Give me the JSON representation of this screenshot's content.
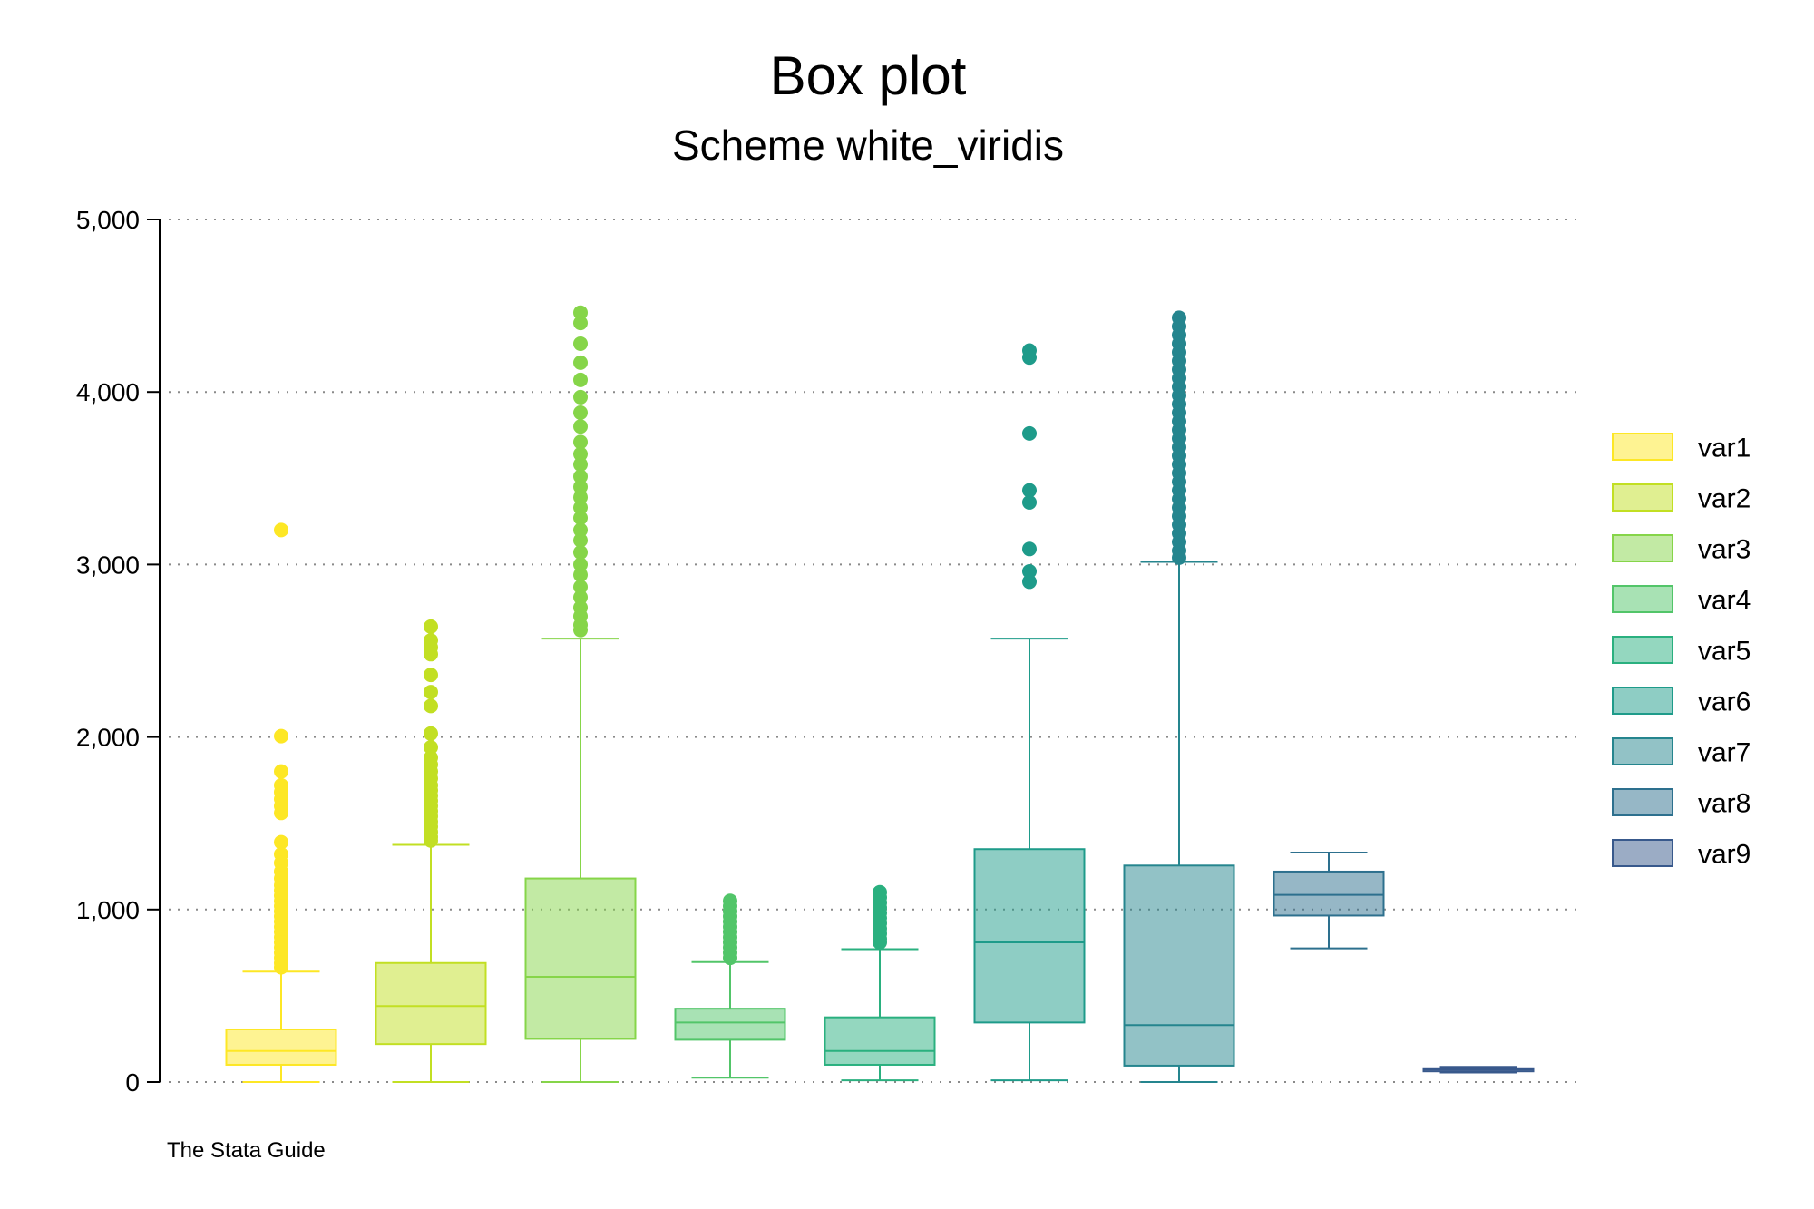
{
  "chart_data": {
    "type": "box",
    "title": "Box plot",
    "subtitle": "Scheme white_viridis",
    "note": "The Stata Guide",
    "xlabel": "",
    "ylabel": "",
    "ylim": [
      0,
      5000
    ],
    "yticks": [
      0,
      1000,
      2000,
      3000,
      4000,
      5000
    ],
    "ytick_labels": [
      "0",
      "1,000",
      "2,000",
      "3,000",
      "4,000",
      "5,000"
    ],
    "grid": true,
    "legend_position": "right",
    "series": [
      {
        "name": "var1",
        "color": "#fde725",
        "q1": 100,
        "median": 180,
        "q3": 305,
        "whisker_low": 0,
        "whisker_high": 640,
        "outliers": [
          3200,
          2005,
          1800,
          1720,
          1680,
          1640,
          1600,
          1560,
          1390,
          1320,
          1270,
          1220,
          1180,
          1140,
          1110,
          1080,
          1050,
          1020,
          990,
          960,
          930,
          900,
          870,
          840,
          810,
          780,
          750,
          720,
          690,
          665
        ]
      },
      {
        "name": "var2",
        "color": "#c2df23",
        "q1": 220,
        "median": 440,
        "q3": 690,
        "whisker_low": 0,
        "whisker_high": 1375,
        "outliers": [
          2640,
          2560,
          2520,
          2480,
          2360,
          2260,
          2180,
          2020,
          1940,
          1880,
          1840,
          1800,
          1760,
          1720,
          1690,
          1660,
          1630,
          1600,
          1570,
          1540,
          1510,
          1480,
          1450,
          1420,
          1400
        ]
      },
      {
        "name": "var3",
        "color": "#86d549",
        "q1": 250,
        "median": 610,
        "q3": 1180,
        "whisker_low": 0,
        "whisker_high": 2570,
        "outliers": [
          4460,
          4400,
          4280,
          4170,
          4070,
          3970,
          3880,
          3800,
          3710,
          3640,
          3580,
          3510,
          3450,
          3390,
          3330,
          3270,
          3200,
          3140,
          3070,
          3000,
          2940,
          2870,
          2810,
          2750,
          2700,
          2650,
          2620
        ]
      },
      {
        "name": "var4",
        "color": "#52c569",
        "q1": 245,
        "median": 345,
        "q3": 425,
        "whisker_low": 25,
        "whisker_high": 695,
        "outliers": [
          1050,
          1020,
          990,
          960,
          930,
          900,
          870,
          840,
          810,
          780,
          750,
          720
        ]
      },
      {
        "name": "var5",
        "color": "#2ab07f",
        "q1": 100,
        "median": 180,
        "q3": 375,
        "whisker_low": 10,
        "whisker_high": 770,
        "outliers": [
          1100,
          1070,
          1040,
          1010,
          980,
          950,
          920,
          890,
          860,
          830,
          810
        ]
      },
      {
        "name": "var6",
        "color": "#1e9b8a",
        "q1": 345,
        "median": 810,
        "q3": 1350,
        "whisker_low": 10,
        "whisker_high": 2570,
        "outliers": [
          4240,
          4200,
          3760,
          3430,
          3360,
          3090,
          2960,
          2900
        ]
      },
      {
        "name": "var7",
        "color": "#25858e",
        "q1": 95,
        "median": 330,
        "q3": 1255,
        "whisker_low": 0,
        "whisker_high": 3015,
        "outliers": [
          4430,
          4380,
          4330,
          4280,
          4230,
          4180,
          4130,
          4080,
          4030,
          3980,
          3930,
          3880,
          3830,
          3780,
          3730,
          3680,
          3630,
          3580,
          3530,
          3480,
          3430,
          3380,
          3330,
          3280,
          3230,
          3180,
          3130,
          3080,
          3040
        ]
      },
      {
        "name": "var8",
        "color": "#2d708e",
        "q1": 965,
        "median": 1085,
        "q3": 1220,
        "whisker_low": 775,
        "whisker_high": 1330,
        "outliers": []
      },
      {
        "name": "var9",
        "color": "#38598c",
        "q1": 62,
        "median": 72,
        "q3": 80,
        "whisker_low": 55,
        "whisker_high": 88,
        "outliers": []
      }
    ]
  }
}
